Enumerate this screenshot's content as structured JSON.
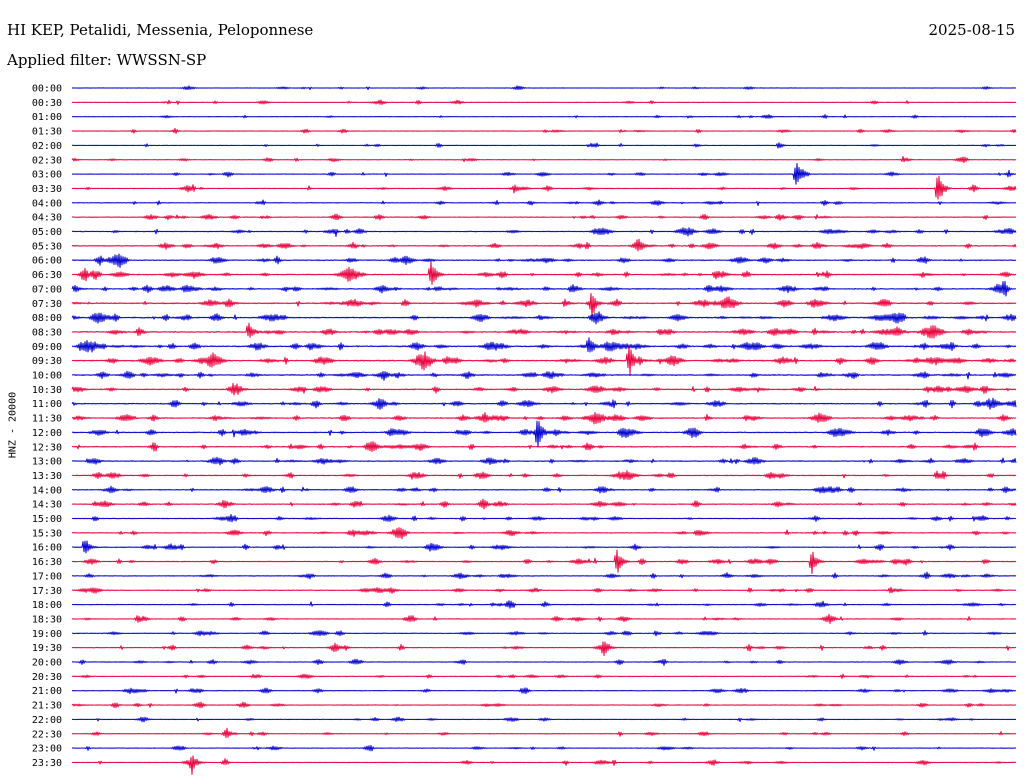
{
  "header": {
    "title": "HI KEP, Petalidi, Messenia, Peloponnese",
    "date": "2025-08-15",
    "filter_label": "Applied filter:",
    "filter_value": "WWSSN-SP"
  },
  "colors": {
    "trace_even": "#0000cc",
    "trace_odd": "#e8003c",
    "text": "#000000",
    "background": "#ffffff"
  },
  "chart_data": {
    "type": "line",
    "subtype": "helicorder",
    "title": "HI KEP, Petalidi, Messenia, Peloponnese",
    "ylabel": "HNZ - 20000",
    "xlabel": "",
    "row_labels": [
      "00:00",
      "00:30",
      "01:00",
      "01:30",
      "02:00",
      "02:30",
      "03:00",
      "03:30",
      "04:00",
      "04:30",
      "05:00",
      "05:30",
      "06:00",
      "06:30",
      "07:00",
      "07:30",
      "08:00",
      "08:30",
      "09:00",
      "09:30",
      "10:00",
      "10:30",
      "11:00",
      "11:30",
      "12:00",
      "12:30",
      "13:00",
      "13:30",
      "14:00",
      "14:30",
      "15:00",
      "15:30",
      "16:00",
      "16:30",
      "17:00",
      "17:30",
      "18:00",
      "18:30",
      "19:00",
      "19:30",
      "20:00",
      "20:30",
      "21:00",
      "21:30",
      "22:00",
      "22:30",
      "23:00",
      "23:30"
    ],
    "row_minutes": 30,
    "row_colors": [
      "blue",
      "red"
    ],
    "activity_per_row": [
      0.2,
      0.2,
      0.2,
      0.25,
      0.25,
      0.25,
      0.3,
      0.35,
      0.4,
      0.45,
      0.55,
      0.6,
      0.65,
      0.7,
      0.75,
      0.8,
      0.85,
      0.85,
      0.9,
      0.9,
      0.8,
      0.75,
      0.7,
      0.7,
      0.7,
      0.65,
      0.6,
      0.6,
      0.55,
      0.55,
      0.5,
      0.5,
      0.5,
      0.5,
      0.45,
      0.45,
      0.45,
      0.4,
      0.4,
      0.4,
      0.35,
      0.35,
      0.35,
      0.35,
      0.3,
      0.3,
      0.3,
      0.3
    ],
    "events": [
      {
        "row": 6,
        "minute": 23.0,
        "amplitude": 14
      },
      {
        "row": 7,
        "minute": 27.5,
        "amplitude": 20
      },
      {
        "row": 13,
        "minute": 11.4,
        "amplitude": 16
      },
      {
        "row": 15,
        "minute": 16.5,
        "amplitude": 14
      },
      {
        "row": 17,
        "minute": 5.6,
        "amplitude": 12
      },
      {
        "row": 18,
        "minute": 16.4,
        "amplitude": 12
      },
      {
        "row": 19,
        "minute": 17.7,
        "amplitude": 18
      },
      {
        "row": 24,
        "minute": 14.8,
        "amplitude": 16
      },
      {
        "row": 32,
        "minute": 0.4,
        "amplitude": 12
      },
      {
        "row": 33,
        "minute": 17.3,
        "amplitude": 16
      },
      {
        "row": 33,
        "minute": 23.5,
        "amplitude": 14
      },
      {
        "row": 39,
        "minute": 16.9,
        "amplitude": 10
      },
      {
        "row": 47,
        "minute": 3.8,
        "amplitude": 12
      }
    ]
  }
}
